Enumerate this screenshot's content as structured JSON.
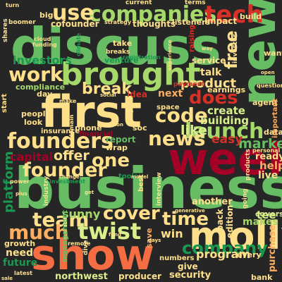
{
  "palette": {
    "background": "#262626",
    "dark_red": "#a50026",
    "red": "#d73027",
    "orange": "#f46d43",
    "light_orange": "#fdae61",
    "pale_yellow": "#fee08b",
    "pale_green": "#d9ef8b",
    "light_green": "#a6d96a",
    "green": "#66bd63",
    "teal_green": "#1a9850",
    "dark_green": "#006837"
  },
  "words": [
    {
      "text": "business",
      "color": "#66bd63"
    },
    {
      "text": "week",
      "color": "#a50026"
    },
    {
      "text": "discuss",
      "color": "#66bd63"
    },
    {
      "text": "show",
      "color": "#f46d43"
    },
    {
      "text": "first",
      "color": "#fee08b"
    },
    {
      "text": "new",
      "color": "#66bd63"
    },
    {
      "text": "molly",
      "color": "#fee08b"
    },
    {
      "text": "brought",
      "color": "#a6d96a"
    },
    {
      "text": "companies",
      "color": "#a6d96a"
    },
    {
      "text": "founders",
      "color": "#fee08b"
    },
    {
      "text": "launch",
      "color": "#a6d96a"
    },
    {
      "text": "founder",
      "color": "#fee08b"
    },
    {
      "text": "tech",
      "color": "#d73027"
    },
    {
      "text": "work",
      "color": "#fee08b"
    },
    {
      "text": "use",
      "color": "#fee08b"
    },
    {
      "text": "team",
      "color": "#fee08b"
    },
    {
      "text": "much",
      "color": "#fdae61"
    },
    {
      "text": "twist",
      "color": "#d9ef8b"
    },
    {
      "text": "news",
      "color": "#fee08b"
    },
    {
      "text": "time",
      "color": "#fee08b"
    },
    {
      "text": "cover",
      "color": "#fee08b"
    },
    {
      "text": "company",
      "color": "#1a9850"
    },
    {
      "text": "code",
      "color": "#fee08b"
    },
    {
      "text": "does",
      "color": "#d73027"
    },
    {
      "text": "one",
      "color": "#fee08b"
    },
    {
      "text": "break",
      "color": "#fee08b"
    },
    {
      "text": "free",
      "color": "#fee08b"
    },
    {
      "text": "offer",
      "color": "#fee08b"
    },
    {
      "text": "like",
      "color": "#d9ef8b"
    },
    {
      "text": "market",
      "color": "#66bd63"
    },
    {
      "text": "platform",
      "color": "#1a9850"
    },
    {
      "text": "capital",
      "color": "#a50026"
    },
    {
      "text": "product",
      "color": "#fee08b"
    },
    {
      "text": "easy",
      "color": "#d73027"
    },
    {
      "text": "investors",
      "color": "#1a9850"
    },
    {
      "text": "create",
      "color": "#d9ef8b"
    },
    {
      "text": "building",
      "color": "#d9ef8b"
    },
    {
      "text": "sunny",
      "color": "#a6d96a"
    },
    {
      "text": "program",
      "color": "#fee08b"
    },
    {
      "text": "security",
      "color": "#fee08b"
    },
    {
      "text": "northwest",
      "color": "#d9ef8b"
    },
    {
      "text": "help",
      "color": "#fdae61"
    },
    {
      "text": "ready",
      "color": "#fee08b"
    },
    {
      "text": "tee",
      "color": "#d9ef8b"
    },
    {
      "text": "live",
      "color": "#fee08b"
    },
    {
      "text": "need",
      "color": "#fee08b"
    },
    {
      "text": "future",
      "color": "#1a9850"
    },
    {
      "text": "growth",
      "color": "#fee08b"
    },
    {
      "text": "purchase",
      "color": "#fdae61"
    },
    {
      "text": "covers",
      "color": "#d9ef8b"
    },
    {
      "text": "makes",
      "color": "#a6d96a"
    },
    {
      "text": "edition",
      "color": "#fee08b"
    },
    {
      "text": "back",
      "color": "#fee08b"
    },
    {
      "text": "give",
      "color": "#fee08b"
    },
    {
      "text": "producer",
      "color": "#fee08b"
    },
    {
      "text": "bank",
      "color": "#fee08b"
    },
    {
      "text": "every",
      "color": "#fee08b"
    },
    {
      "text": "win",
      "color": "#fee08b"
    },
    {
      "text": "another",
      "color": "#fee08b"
    },
    {
      "text": "report",
      "color": "#66bd63"
    },
    {
      "text": "talk",
      "color": "#fee08b"
    },
    {
      "text": "next",
      "color": "#fdae61"
    },
    {
      "text": "idea",
      "color": "#d73027"
    },
    {
      "text": "service",
      "color": "#fee08b"
    },
    {
      "text": "earnings",
      "color": "#fee08b"
    },
    {
      "text": "impact",
      "color": "#fee08b"
    },
    {
      "text": "build",
      "color": "#fee08b"
    },
    {
      "text": "cofounder",
      "color": "#fee08b"
    },
    {
      "text": "big",
      "color": "#fee08b"
    },
    {
      "text": "thoughts",
      "color": "#fee08b"
    },
    {
      "text": "listeners",
      "color": "#fee08b"
    },
    {
      "text": "strategy",
      "color": "#fee08b"
    },
    {
      "text": "take",
      "color": "#fee08b"
    },
    {
      "text": "venture",
      "color": "#1a9850"
    },
    {
      "text": "compliance",
      "color": "#a6d96a"
    },
    {
      "text": "day",
      "color": "#fee08b"
    },
    {
      "text": "people",
      "color": "#fee08b"
    },
    {
      "text": "look",
      "color": "#fee08b"
    },
    {
      "text": "plan",
      "color": "#fee08b"
    },
    {
      "text": "insurance",
      "color": "#fee08b"
    },
    {
      "text": "phone",
      "color": "#fee08b"
    },
    {
      "text": "financial",
      "color": "#a50026"
    },
    {
      "text": "wrap",
      "color": "#fee08b"
    },
    {
      "text": "soc",
      "color": "#fee08b"
    },
    {
      "text": "space",
      "color": "#fee08b"
    },
    {
      "text": "agent",
      "color": "#fee08b"
    },
    {
      "text": "personal",
      "color": "#fee08b"
    },
    {
      "text": "data",
      "color": "#fee08b"
    },
    {
      "text": "want",
      "color": "#fee08b"
    },
    {
      "text": "investor",
      "color": "#fee08b"
    },
    {
      "text": "raising",
      "color": "#d73027"
    },
    {
      "text": "terms",
      "color": "#fee08b"
    },
    {
      "text": "current",
      "color": "#fee08b"
    },
    {
      "text": "industry",
      "color": "#fee08b"
    },
    {
      "text": "start",
      "color": "#fee08b"
    },
    {
      "text": "management",
      "color": "#66bd63"
    },
    {
      "text": "tools",
      "color": "#1a9850"
    },
    {
      "text": "best",
      "color": "#fee08b"
    },
    {
      "text": "interview",
      "color": "#fee08b"
    },
    {
      "text": "save",
      "color": "#fdae61"
    },
    {
      "text": "products",
      "color": "#fee08b"
    },
    {
      "text": "going",
      "color": "#fee08b"
    },
    {
      "text": "numbers",
      "color": "#fee08b"
    },
    {
      "text": "important",
      "color": "#fdae61"
    },
    {
      "text": "shares",
      "color": "#fee08b"
    },
    {
      "text": "boomer",
      "color": "#fee08b"
    },
    {
      "text": "funding",
      "color": "#fee08b"
    },
    {
      "text": "remote",
      "color": "#fee08b"
    },
    {
      "text": "latest",
      "color": "#fee08b"
    },
    {
      "text": "power",
      "color": "#fee08b"
    },
    {
      "text": "breaks",
      "color": "#fee08b"
    },
    {
      "text": "climate",
      "color": "#1a9850"
    },
    {
      "text": "valuation",
      "color": "#fee08b"
    },
    {
      "text": "domain",
      "color": "#fee08b"
    },
    {
      "text": "payment",
      "color": "#d73027"
    },
    {
      "text": "experience",
      "color": "#fee08b"
    },
    {
      "text": "questions",
      "color": "#fee08b"
    },
    {
      "text": "generative",
      "color": "#fee08b"
    },
    {
      "text": "investment",
      "color": "#1a9850"
    },
    {
      "text": "cloud",
      "color": "#fee08b"
    },
    {
      "text": "make",
      "color": "#fee08b"
    },
    {
      "text": "dive",
      "color": "#fee08b"
    },
    {
      "text": "plus",
      "color": "#fee08b"
    },
    {
      "text": "change",
      "color": "#fee08b"
    },
    {
      "text": "registration",
      "color": "#1a9850"
    },
    {
      "text": "turn",
      "color": "#fee08b"
    },
    {
      "text": "open",
      "color": "#fee08b"
    },
    {
      "text": "sale",
      "color": "#fee08b"
    },
    {
      "text": "days",
      "color": "#fee08b"
    },
    {
      "text": "model",
      "color": "#fee08b"
    },
    {
      "text": "get",
      "color": "#fee08b"
    },
    {
      "text": "way",
      "color": "#fee08b"
    },
    {
      "text": "fund",
      "color": "#fee08b"
    },
    {
      "text": "social",
      "color": "#fee08b"
    }
  ]
}
